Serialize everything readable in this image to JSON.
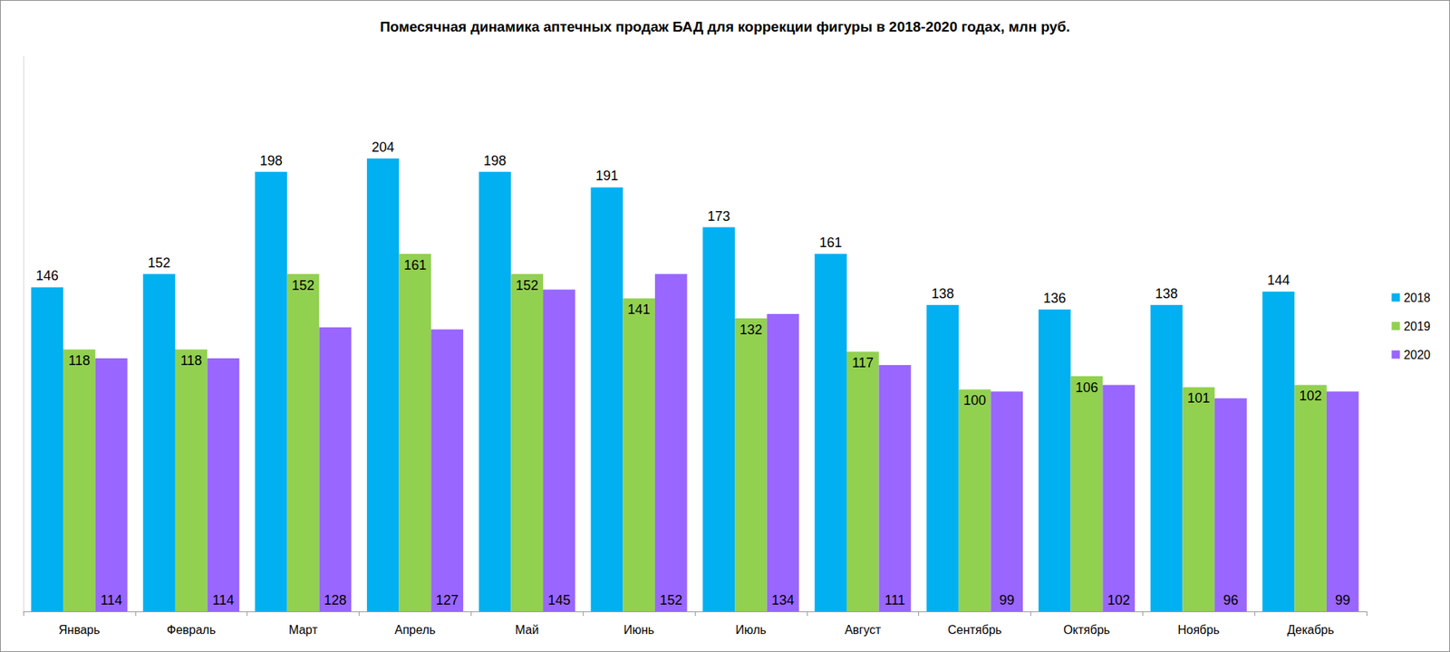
{
  "chart_data": {
    "type": "bar",
    "title": "Помесячная динамика аптечных продаж БАД для коррекции фигуры в 2018-2020 годах, млн руб.",
    "categories": [
      "Январь",
      "Февраль",
      "Март",
      "Апрель",
      "Май",
      "Июнь",
      "Июль",
      "Август",
      "Сентябрь",
      "Октябрь",
      "Ноябрь",
      "Декабрь"
    ],
    "series": [
      {
        "name": "2018",
        "color": "#00b0f0",
        "values": [
          146,
          152,
          198,
          204,
          198,
          191,
          173,
          161,
          138,
          136,
          138,
          144
        ]
      },
      {
        "name": "2019",
        "color": "#92d050",
        "values": [
          118,
          118,
          152,
          161,
          152,
          141,
          132,
          117,
          100,
          106,
          101,
          102
        ]
      },
      {
        "name": "2020",
        "color": "#9966ff",
        "values": [
          114,
          114,
          128,
          127,
          145,
          152,
          134,
          111,
          99,
          102,
          96,
          99
        ]
      }
    ],
    "ylim": [
      0,
      250
    ],
    "yticks": [],
    "grid": false,
    "legend": "right",
    "data_labels": true,
    "tick_labels": "x"
  }
}
